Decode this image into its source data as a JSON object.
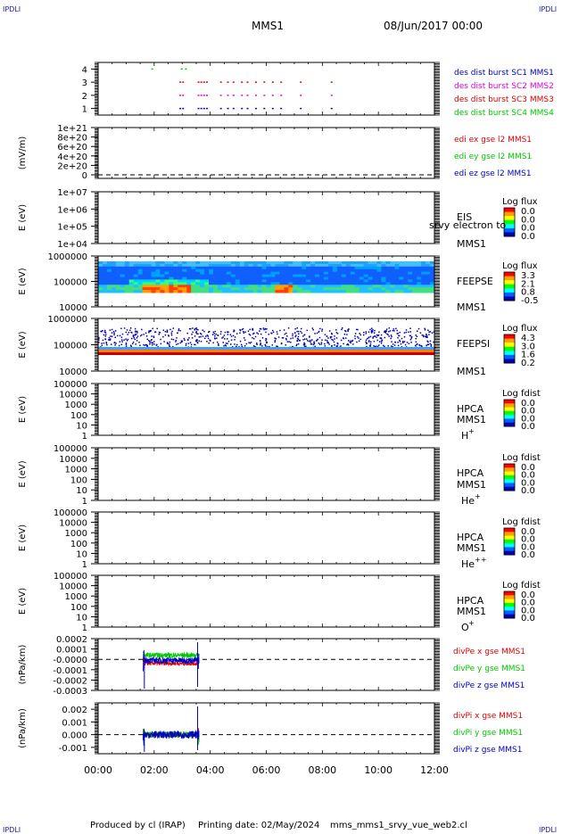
{
  "header": {
    "corner_tl": "IPDLI",
    "corner_tr": "IPDLI",
    "corner_bl": "IPDLI",
    "corner_br": "IPDLI",
    "title": "MMS1",
    "date": "08/Jun/2017 00:00"
  },
  "footer": {
    "produced": "Produced by cl (IRAP)",
    "printing": "Printing date: 02/May/2024",
    "file": "mms_mms1_srvy_vue_web2.cl"
  },
  "colors": {
    "blue": "#0000c8",
    "magenta": "#e000e0",
    "red": "#e00000",
    "green": "#00c800"
  },
  "chart_data": [
    {
      "type": "scatter",
      "panel": "des-burst",
      "ylabel": "",
      "ylim": [
        0.5,
        4.5
      ],
      "yticks": [
        "1",
        "2",
        "3",
        "4"
      ],
      "series": [
        {
          "name": "des dist burst SC1 MMS1",
          "color": "#0000c8",
          "y": 1,
          "x": [
            2.9,
            3.0,
            3.55,
            3.65,
            3.75,
            3.85,
            4.35,
            4.6,
            4.8,
            5.1,
            5.3,
            5.6,
            5.9,
            6.2,
            6.5,
            7.2,
            8.3
          ]
        },
        {
          "name": "des dist burst SC2 MMS2",
          "color": "#e000e0",
          "y": 2,
          "x": [
            2.9,
            3.0,
            3.55,
            3.65,
            3.75,
            3.85,
            4.35,
            4.6,
            4.8,
            5.1,
            5.3,
            5.6,
            5.9,
            6.2,
            6.5,
            7.2,
            8.3
          ]
        },
        {
          "name": "des dist burst SC3 MMS3",
          "color": "#e00000",
          "y": 3,
          "x": [
            2.9,
            3.0,
            3.55,
            3.65,
            3.75,
            3.85,
            4.35,
            4.6,
            4.8,
            5.1,
            5.3,
            5.6,
            5.9,
            6.2,
            6.5,
            7.2,
            8.3
          ]
        },
        {
          "name": "des dist burst SC4 MMS4",
          "color": "#00c800",
          "y": 4,
          "x": [
            1.9,
            2.95,
            3.1
          ]
        }
      ]
    },
    {
      "type": "line",
      "panel": "edi",
      "ylabel": "(mV/m)",
      "ylim": [
        -1e+20,
        1.05e+21
      ],
      "yticks": [
        "0",
        "2e+20",
        "4e+20",
        "6e+20",
        "8e+20",
        "1e+21"
      ],
      "series": [
        {
          "name": "edi ex gse l2 MMS1",
          "color": "#e00000"
        },
        {
          "name": "edi ey gse l2 MMS1",
          "color": "#00c800"
        },
        {
          "name": "edi ez gse l2 MMS1",
          "color": "#0000c8"
        }
      ]
    },
    {
      "type": "heatmap",
      "panel": "eis",
      "ylabel": "E (eV)",
      "yscale": "log",
      "ylim": [
        10000,
        10000000
      ],
      "yticks": [
        "1e+04",
        "1e+05",
        "1e+06",
        "1e+07"
      ],
      "labels": [
        "EIS",
        "MMS1"
      ],
      "overlay_text": "srvy electron to",
      "colorbar": {
        "title": "Log flux",
        "ticks": [
          "0.0",
          "0.0",
          "0.0",
          "0.0"
        ]
      }
    },
    {
      "type": "heatmap",
      "panel": "feeps-e",
      "ylabel": "E (eV)",
      "yscale": "log",
      "ylim": [
        10000,
        1000000
      ],
      "yticks": [
        "10000",
        "100000",
        "1000000"
      ],
      "labels": [
        "FEEPSE",
        "MMS1"
      ],
      "colorbar": {
        "title": "Log flux",
        "ticks": [
          "3.3",
          "2.1",
          "0.8",
          "-0.5"
        ]
      }
    },
    {
      "type": "heatmap",
      "panel": "feeps-i",
      "ylabel": "E (eV)",
      "yscale": "log",
      "ylim": [
        10000,
        1000000
      ],
      "yticks": [
        "10000",
        "100000",
        "1000000"
      ],
      "labels": [
        "FEEPSI",
        "MMS1"
      ],
      "colorbar": {
        "title": "Log flux",
        "ticks": [
          "4.3",
          "3.0",
          "1.6",
          "0.2"
        ]
      }
    },
    {
      "type": "heatmap",
      "panel": "hpca-h",
      "ylabel": "E (eV)",
      "yscale": "log",
      "ylim": [
        1,
        100000
      ],
      "yticks": [
        "1",
        "10",
        "100",
        "1000",
        "10000",
        "100000"
      ],
      "labels": [
        "HPCA",
        "MMS1"
      ],
      "species": "H",
      "species_sup": "+",
      "colorbar": {
        "title": "Log fdist",
        "ticks": [
          "0.0",
          "0.0",
          "0.0",
          "0.0"
        ]
      }
    },
    {
      "type": "heatmap",
      "panel": "hpca-he",
      "ylabel": "E (eV)",
      "yscale": "log",
      "ylim": [
        1,
        100000
      ],
      "yticks": [
        "1",
        "10",
        "100",
        "1000",
        "10000",
        "100000"
      ],
      "labels": [
        "HPCA",
        "MMS1"
      ],
      "species": "He",
      "species_sup": "+",
      "colorbar": {
        "title": "Log fdist",
        "ticks": [
          "0.0",
          "0.0",
          "0.0",
          "0.0"
        ]
      }
    },
    {
      "type": "heatmap",
      "panel": "hpca-he2",
      "ylabel": "E (eV)",
      "yscale": "log",
      "ylim": [
        1,
        100000
      ],
      "yticks": [
        "1",
        "10",
        "100",
        "1000",
        "10000",
        "100000"
      ],
      "labels": [
        "HPCA",
        "MMS1"
      ],
      "species": "He",
      "species_sup": "++",
      "colorbar": {
        "title": "Log fdist",
        "ticks": [
          "0.0",
          "0.0",
          "0.0",
          "0.0"
        ]
      }
    },
    {
      "type": "heatmap",
      "panel": "hpca-o",
      "ylabel": "E (eV)",
      "yscale": "log",
      "ylim": [
        1,
        100000
      ],
      "yticks": [
        "1",
        "10",
        "100",
        "1000",
        "10000",
        "100000"
      ],
      "labels": [
        "HPCA",
        "MMS1"
      ],
      "species": "O",
      "species_sup": "+",
      "colorbar": {
        "title": "Log fdist",
        "ticks": [
          "0.0",
          "0.0",
          "0.0",
          "0.0"
        ]
      }
    },
    {
      "type": "line",
      "panel": "divpe",
      "ylabel": "(nPa/km)",
      "ylim": [
        -0.0003,
        0.0002
      ],
      "yticks": [
        "-0.0003",
        "-0.0002",
        "-0.0001",
        "-0.0000",
        "0.0001",
        "0.0002"
      ],
      "yticks_values": [
        -0.0003,
        -0.0002,
        -0.0001,
        0,
        0.0001,
        0.0002
      ],
      "activity_range": [
        1.6,
        3.6
      ],
      "series": [
        {
          "name": "divPe x gse MMS1",
          "color": "#e00000",
          "mean": -4e-05,
          "spread": 2e-05
        },
        {
          "name": "divPe y gse MMS1",
          "color": "#00c800",
          "mean": 4e-05,
          "spread": 2.5e-05
        },
        {
          "name": "divPe z gse MMS1",
          "color": "#0000c8",
          "mean": -1e-05,
          "spread": 3e-05
        }
      ]
    },
    {
      "type": "line",
      "panel": "divpi",
      "ylabel": "(nPa/km)",
      "ylim": [
        -0.0015,
        0.0025
      ],
      "yticks": [
        "-0.001",
        "0.000",
        "0.001",
        "0.002"
      ],
      "yticks_values": [
        -0.001,
        0,
        0.001,
        0.002
      ],
      "activity_range": [
        1.6,
        3.6
      ],
      "series": [
        {
          "name": "divPi x gse MMS1",
          "color": "#e00000",
          "mean": 0.0,
          "spread": 0.0002
        },
        {
          "name": "divPi y gse MMS1",
          "color": "#00c800",
          "mean": 0.0,
          "spread": 0.00025
        },
        {
          "name": "divPi z gse MMS1",
          "color": "#0000c8",
          "mean": 0.0,
          "spread": 0.0003
        }
      ]
    }
  ],
  "time_axis": {
    "range_hours": [
      0,
      12
    ],
    "ticks": [
      "00:00",
      "02:00",
      "04:00",
      "06:00",
      "08:00",
      "10:00",
      "12:00"
    ]
  }
}
